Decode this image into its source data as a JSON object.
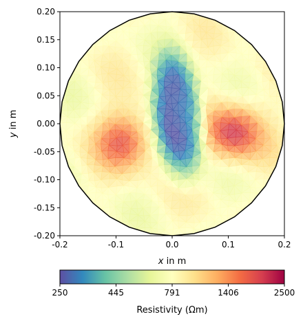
{
  "chart_data": {
    "type": "heatmap",
    "xlabel_var": "x",
    "xlabel_unit": " in m",
    "ylabel_var": "y",
    "ylabel_unit": " in m",
    "xlim": [
      -0.2,
      0.2
    ],
    "ylim": [
      -0.2,
      0.2
    ],
    "x_ticks": [
      "-0.2",
      "-0.1",
      "0.0",
      "0.1",
      "0.2"
    ],
    "y_ticks": [
      "0.20",
      "0.15",
      "0.10",
      "0.05",
      "0.00",
      "-0.05",
      "-0.10",
      "-0.15",
      "-0.20"
    ],
    "domain_shape": "circle",
    "domain_radius_m": 0.2,
    "mesh": "triangular",
    "features": [
      {
        "kind": "low-resistivity elongated body",
        "x_range": [
          -0.04,
          0.06
        ],
        "y_range": [
          -0.11,
          0.14
        ],
        "value_ohm_m": 250
      },
      {
        "kind": "high-resistivity inclusion",
        "center": [
          -0.085,
          -0.03
        ],
        "value_ohm_m": 1700
      },
      {
        "kind": "high-resistivity inclusion",
        "center": [
          0.11,
          -0.015
        ],
        "value_ohm_m": 2000
      }
    ],
    "background_value_ohm_m": 791,
    "colorbar": {
      "colormap": "Spectral_r",
      "scale": "log",
      "range": [
        250,
        2500
      ],
      "ticks": [
        "250",
        "445",
        "791",
        "1406",
        "2500"
      ],
      "label": "Resistivity (Ωm)",
      "orientation": "horizontal",
      "placement": "bottom"
    }
  },
  "colors": {
    "spectral_r": [
      "#5e4fa2",
      "#3288bd",
      "#66c2a5",
      "#abdda4",
      "#e6f598",
      "#ffffbf",
      "#fee08b",
      "#fdae61",
      "#f46d43",
      "#d53e4f",
      "#9e0142"
    ],
    "boundary": "#000000"
  }
}
